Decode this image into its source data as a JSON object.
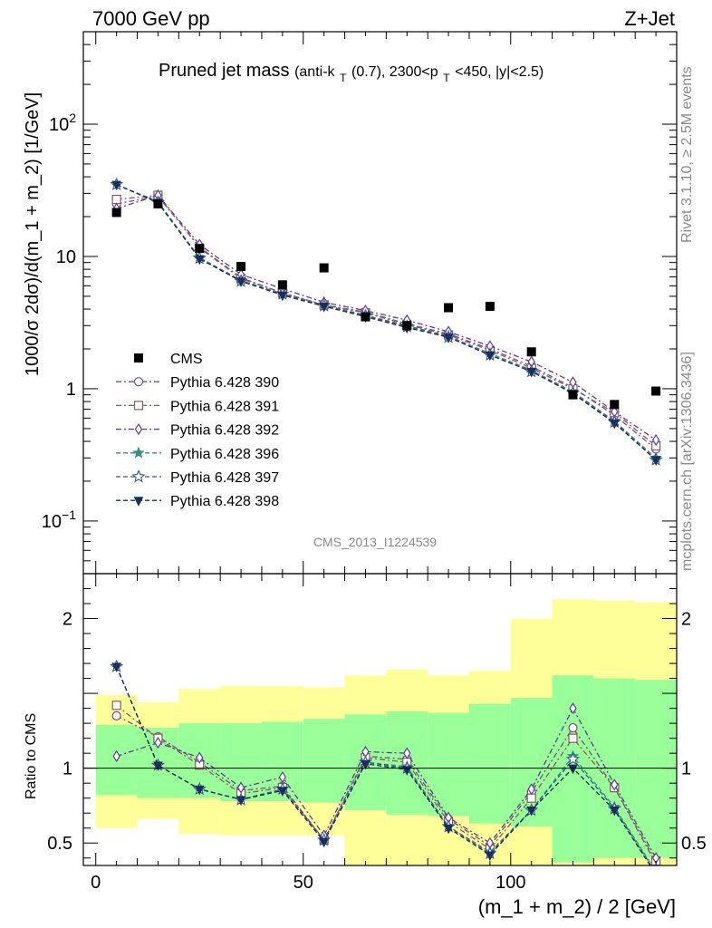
{
  "header": {
    "left": "7000 GeV pp",
    "right": "Z+Jet"
  },
  "side_text": {
    "rivet": "Rivet 3.1.10, ≥ 2.5M events",
    "source": "mcplots.cern.ch [arXiv:1306.3436]"
  },
  "chart_data": [
    {
      "type": "scatter",
      "title": "Pruned jet mass",
      "subtitle": "(anti-kT(0.7), 2300<pT<450, |y|<2.5)",
      "subtitle_parts": {
        "a": "(anti-k",
        "b": "T",
        "c": "(0.7), 2300<p",
        "d": "T",
        "e": "<450, |y|<2.5)"
      },
      "ylabel": "1000/σ 2dσ)/d(m_1 + m_2) [1/GeV]",
      "yscale": "log",
      "ylim": [
        0.04,
        500
      ],
      "xlim": [
        -3,
        140
      ],
      "analysis_id": "CMS_2013_I1224539",
      "y_ticks": [
        {
          "value": 0.1,
          "base": "10",
          "exp": "−1"
        },
        {
          "value": 1,
          "base": "1",
          "exp": ""
        },
        {
          "value": 10,
          "base": "10",
          "exp": ""
        },
        {
          "value": 100,
          "base": "10",
          "exp": "2"
        }
      ],
      "x": [
        5,
        15,
        25,
        35,
        45,
        55,
        65,
        75,
        85,
        95,
        105,
        115,
        125,
        135
      ],
      "data": {
        "name": "CMS",
        "values": [
          21.5,
          25,
          11.5,
          8.4,
          6.1,
          8.2,
          3.5,
          3.0,
          4.1,
          4.2,
          1.9,
          0.9,
          0.76,
          0.96
        ]
      },
      "series": [
        {
          "name": "Pythia 6.428 390",
          "color": "#7d4a8c",
          "marker": "circle",
          "dash": "6,3,2,3",
          "values": [
            25,
            28.5,
            11.8,
            6.9,
            5.3,
            4.3,
            3.8,
            3.1,
            2.6,
            2.0,
            1.48,
            1.02,
            0.63,
            0.35
          ]
        },
        {
          "name": "Pythia 6.428 391",
          "color": "#8c5a5a",
          "marker": "square",
          "dash": "6,3,2,3",
          "values": [
            27,
            29,
            11.6,
            6.8,
            5.3,
            4.3,
            3.75,
            3.05,
            2.55,
            1.95,
            1.43,
            1.0,
            0.66,
            0.37
          ]
        },
        {
          "name": "Pythia 6.428 392",
          "color": "#5e3c9c",
          "marker": "diamond",
          "dash": "6,3,2,3",
          "values": [
            23,
            29,
            12.3,
            7.3,
            5.7,
            4.5,
            3.9,
            3.3,
            2.7,
            2.1,
            1.6,
            1.12,
            0.67,
            0.41
          ]
        },
        {
          "name": "Pythia 6.428 396",
          "color": "#3d8a8a",
          "marker": "star",
          "dash": "5,3",
          "values": [
            35,
            26,
            9.8,
            6.6,
            5.2,
            4.3,
            3.6,
            3.0,
            2.5,
            1.85,
            1.38,
            0.95,
            0.57,
            0.3
          ]
        },
        {
          "name": "Pythia 6.428 397",
          "color": "#3a5a8c",
          "marker": "star-open",
          "dash": "5,3",
          "values": [
            35,
            25.5,
            9.7,
            6.5,
            5.2,
            4.25,
            3.55,
            2.95,
            2.45,
            1.8,
            1.35,
            0.93,
            0.56,
            0.29
          ]
        },
        {
          "name": "Pythia 6.428 398",
          "color": "#1a2f5c",
          "marker": "triangle-down",
          "dash": "5,3",
          "values": [
            35,
            25.5,
            9.6,
            6.5,
            5.1,
            4.2,
            3.5,
            2.9,
            2.45,
            1.8,
            1.35,
            0.92,
            0.55,
            0.29
          ]
        }
      ],
      "legend": {
        "position": "lower-left"
      }
    },
    {
      "type": "line",
      "ylabel": "Ratio to CMS",
      "xlabel": "(m_1 + m_2) / 2 [GeV]",
      "ylim": [
        0.35,
        2.3
      ],
      "xlim": [
        -3,
        140
      ],
      "y_ticks": [
        0.5,
        1,
        2
      ],
      "x_ticks": [
        0,
        50,
        100
      ],
      "bins": [
        [
          0,
          10
        ],
        [
          10,
          20
        ],
        [
          20,
          30
        ],
        [
          30,
          40
        ],
        [
          40,
          50
        ],
        [
          50,
          60
        ],
        [
          60,
          70
        ],
        [
          70,
          80
        ],
        [
          80,
          90
        ],
        [
          90,
          100
        ],
        [
          100,
          110
        ],
        [
          110,
          120
        ],
        [
          120,
          130
        ],
        [
          130,
          140
        ]
      ],
      "band_outer": {
        "color": "#ffff99",
        "lo": [
          0.6,
          0.66,
          0.56,
          0.55,
          0.55,
          0.55,
          0.35,
          0.35,
          0.35,
          0.35,
          0.35,
          0.35,
          0.35,
          0.35
        ],
        "hi": [
          1.49,
          1.44,
          1.53,
          1.55,
          1.55,
          1.54,
          1.62,
          1.66,
          1.62,
          1.65,
          2.0,
          2.13,
          2.12,
          2.11
        ]
      },
      "band_inner": {
        "color": "#99ff99",
        "lo": [
          0.82,
          0.8,
          0.8,
          0.78,
          0.78,
          0.77,
          0.72,
          0.69,
          0.68,
          0.63,
          0.61,
          0.37,
          0.4,
          0.4
        ]
      },
      "band_inner_hi": [
        1.29,
        1.27,
        1.3,
        1.3,
        1.31,
        1.33,
        1.36,
        1.38,
        1.37,
        1.43,
        1.47,
        1.62,
        1.6,
        1.59
      ],
      "x": [
        5,
        15,
        25,
        35,
        45,
        55,
        65,
        75,
        85,
        95,
        105,
        115,
        125,
        135
      ],
      "series": [
        {
          "name": "Pythia 6.428 390",
          "color": "#7d4a8c",
          "marker": "circle",
          "dash": "6,3,2,3",
          "values": [
            1.35,
            1.21,
            1.04,
            0.85,
            0.88,
            0.52,
            1.08,
            1.06,
            0.66,
            0.48,
            0.84,
            1.27,
            0.87,
            0.36
          ]
        },
        {
          "name": "Pythia 6.428 391",
          "color": "#8c5a5a",
          "marker": "square",
          "dash": "6,3,2,3",
          "values": [
            1.42,
            1.2,
            1.02,
            0.83,
            0.87,
            0.52,
            1.07,
            1.04,
            0.64,
            0.46,
            0.8,
            1.2,
            0.87,
            0.38
          ]
        },
        {
          "name": "Pythia 6.428 392",
          "color": "#5e3c9c",
          "marker": "diamond",
          "dash": "6,3,2,3",
          "values": [
            1.08,
            1.17,
            1.07,
            0.87,
            0.94,
            0.55,
            1.11,
            1.1,
            0.67,
            0.5,
            0.86,
            1.4,
            0.89,
            0.4
          ]
        },
        {
          "name": "Pythia 6.428 396",
          "color": "#3d8a8a",
          "marker": "star",
          "dash": "5,3",
          "values": [
            1.68,
            1.02,
            0.86,
            0.79,
            0.86,
            0.52,
            1.04,
            1.01,
            0.61,
            0.44,
            0.72,
            1.08,
            0.74,
            0.31
          ]
        },
        {
          "name": "Pythia 6.428 397",
          "color": "#3a5a8c",
          "marker": "star-open",
          "dash": "5,3",
          "values": [
            1.68,
            1.02,
            0.86,
            0.79,
            0.86,
            0.52,
            1.04,
            1.0,
            0.61,
            0.43,
            0.72,
            1.06,
            0.73,
            0.3
          ]
        },
        {
          "name": "Pythia 6.428 398",
          "color": "#1a2f5c",
          "marker": "triangle-down",
          "dash": "5,3",
          "values": [
            1.68,
            1.02,
            0.86,
            0.79,
            0.85,
            0.51,
            1.03,
            0.99,
            0.6,
            0.42,
            0.72,
            1.0,
            0.72,
            0.29
          ]
        }
      ]
    }
  ]
}
